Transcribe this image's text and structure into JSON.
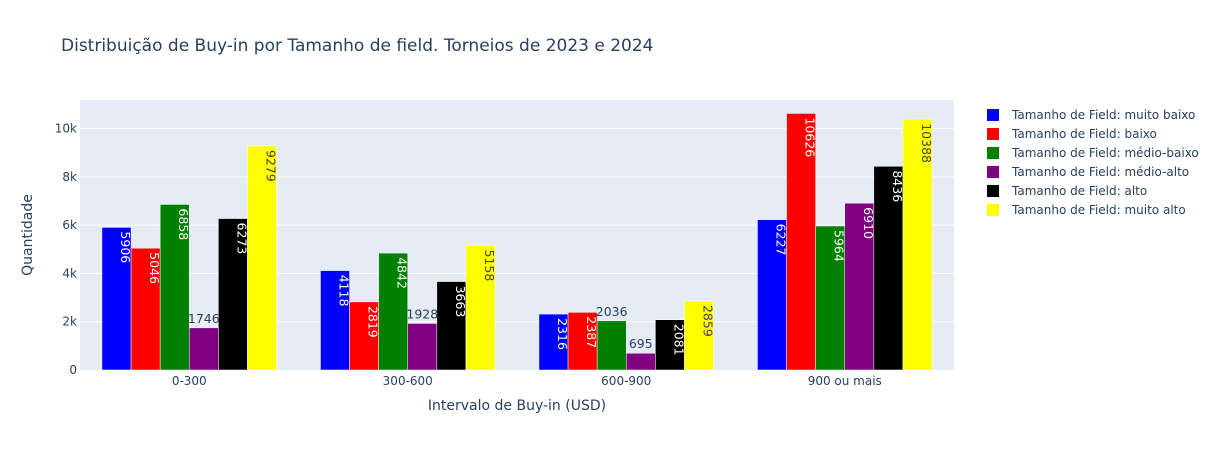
{
  "chart_data": {
    "type": "bar",
    "title": "Distribuição de Buy-in por Tamanho de field. Torneios de 2023 e 2024",
    "xlabel": "Intervalo de Buy-in (USD)",
    "ylabel": "Quantidade",
    "categories": [
      "0-300",
      "300-600",
      "600-900",
      "900 ou mais"
    ],
    "ylim": [
      0,
      11184
    ],
    "yticks": [
      0,
      2000,
      4000,
      6000,
      8000,
      10000
    ],
    "ytick_labels": [
      "0",
      "2k",
      "4k",
      "6k",
      "8k",
      "10k"
    ],
    "grid": true,
    "legend_position": "right",
    "series": [
      {
        "name": "Tamanho de Field: muito baixo",
        "color": "#0000ff",
        "text_color": "#ffffff",
        "values": [
          5906,
          4118,
          2316,
          6227
        ]
      },
      {
        "name": "Tamanho de Field: baixo",
        "color": "#ff0000",
        "text_color": "#ffffff",
        "values": [
          5046,
          2819,
          2387,
          10626
        ]
      },
      {
        "name": "Tamanho de Field: médio-baixo",
        "color": "#008000",
        "text_color": "#ffffff",
        "values": [
          6858,
          4842,
          2036,
          5964
        ]
      },
      {
        "name": "Tamanho de Field: médio-alto",
        "color": "#800080",
        "text_color": "#ffffff",
        "values": [
          1746,
          1928,
          695,
          6910
        ]
      },
      {
        "name": "Tamanho de Field: alto",
        "color": "#000000",
        "text_color": "#ffffff",
        "values": [
          6273,
          3663,
          2081,
          8436
        ]
      },
      {
        "name": "Tamanho de Field: muito alto",
        "color": "#ffff00",
        "text_color": "#444444",
        "values": [
          9279,
          5158,
          2859,
          10388
        ]
      }
    ],
    "plot_background": "#e5ecf6",
    "gridline_color": "#ffffff",
    "text_color": "#2a3f5f"
  }
}
